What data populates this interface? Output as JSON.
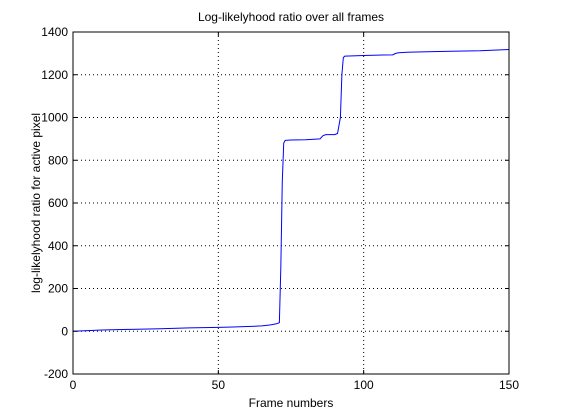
{
  "chart_data": {
    "type": "line",
    "title": "Log-likelyhood ratio over all frames",
    "xlabel": "Frame numbers",
    "ylabel": "log-likelyhood ratio for active pixel",
    "xlim": [
      0,
      150
    ],
    "ylim": [
      -200,
      1400
    ],
    "xticks": [
      0,
      50,
      100,
      150
    ],
    "yticks": [
      -200,
      0,
      200,
      400,
      600,
      800,
      1000,
      1200,
      1400
    ],
    "grid": true,
    "grid_style": "dotted",
    "legend": false,
    "colors": {
      "line": "#0000ff",
      "axes": "#000000",
      "grid": "#000000",
      "background": "#ffffff"
    },
    "series": [
      {
        "x": [
          0,
          5,
          10,
          20,
          30,
          40,
          50,
          55,
          60,
          65,
          68,
          70,
          71,
          71.5,
          72,
          72.5,
          73,
          75,
          80,
          85,
          86,
          87,
          88,
          90,
          91,
          92,
          92.5,
          93,
          93.5,
          95,
          100,
          105,
          110,
          111,
          112,
          115,
          120,
          130,
          140,
          145,
          150
        ],
        "y": [
          0,
          3,
          6,
          9,
          12,
          16,
          18,
          20,
          22,
          25,
          30,
          35,
          40,
          300,
          700,
          880,
          893,
          895,
          896,
          900,
          915,
          920,
          920,
          920,
          925,
          1000,
          1200,
          1280,
          1287,
          1288,
          1290,
          1292,
          1293,
          1300,
          1303,
          1305,
          1307,
          1310,
          1312,
          1315,
          1318
        ]
      }
    ]
  }
}
